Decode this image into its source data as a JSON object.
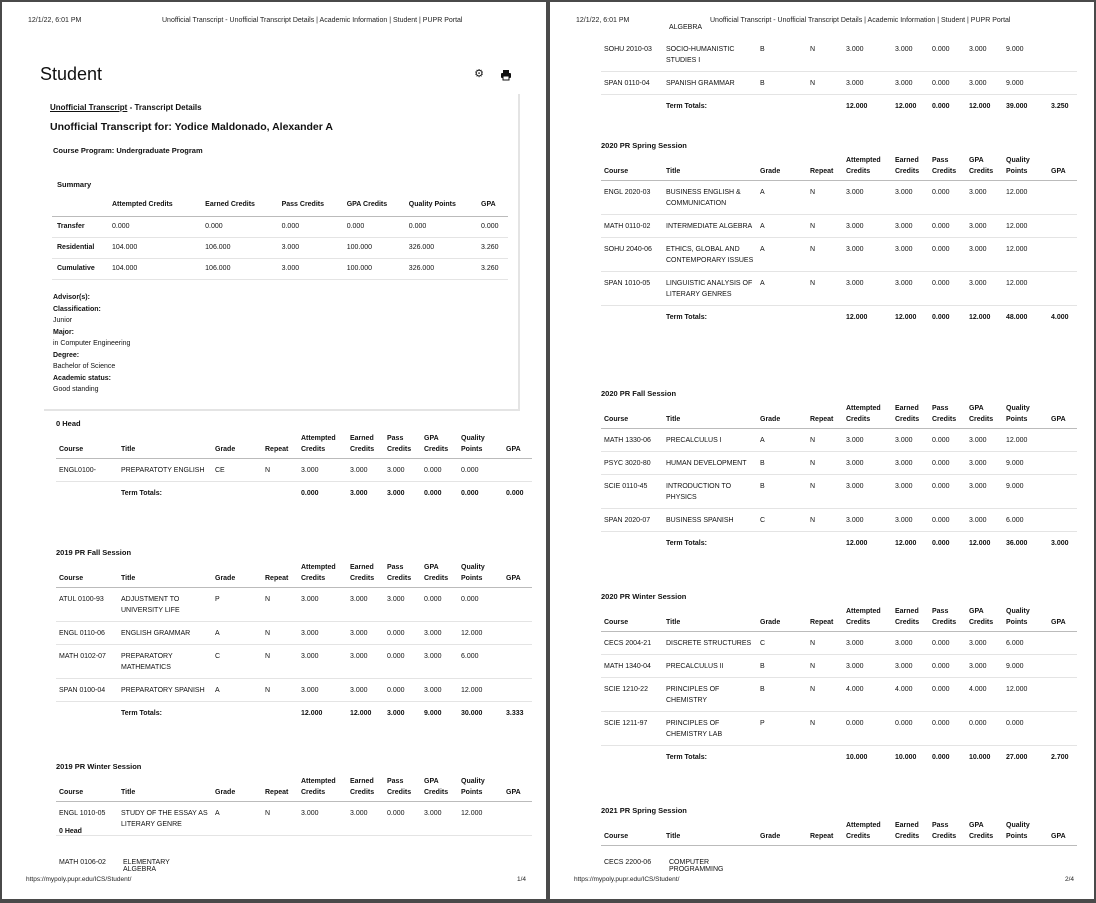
{
  "header": {
    "date": "12/1/22, 6:01 PM",
    "title": "Unofficial Transcript - Unofficial Transcript Details | Academic Information | Student | PUPR Portal"
  },
  "footer": {
    "url": "https://mypoly.pupr.edu/ICS/Student/",
    "page1": "1/4",
    "page2": "2/4"
  },
  "page1": {
    "heading": "Student",
    "breadcrumb_link": "Unofficial Transcript",
    "breadcrumb_rest": " - Transcript Details",
    "transcript_for": "Unofficial Transcript for: Yodice Maldonado, Alexander A",
    "course_program": "Course Program: Undergraduate Program",
    "summary_label": "Summary",
    "summary_headers": [
      "Attempted Credits",
      "Earned Credits",
      "Pass Credits",
      "GPA Credits",
      "Quality Points",
      "GPA"
    ],
    "summary_rows": [
      {
        "label": "Transfer",
        "vals": [
          "0.000",
          "0.000",
          "0.000",
          "0.000",
          "0.000",
          "0.000"
        ]
      },
      {
        "label": "Residential",
        "vals": [
          "104.000",
          "106.000",
          "3.000",
          "100.000",
          "326.000",
          "3.260"
        ]
      },
      {
        "label": "Cumulative",
        "vals": [
          "104.000",
          "106.000",
          "3.000",
          "100.000",
          "326.000",
          "3.260"
        ]
      }
    ],
    "advisor_label": "Advisor(s):",
    "classification_label": "Classification:",
    "classification": "Junior",
    "major_label": "Major:",
    "major": "in Computer Engineering",
    "degree_label": "Degree:",
    "degree": "Bachelor of Science",
    "status_label": "Academic status:",
    "status": "Good standing"
  },
  "col_headers": [
    "Course",
    "Title",
    "Grade",
    "Repeat",
    "Attempted Credits",
    "Earned Credits",
    "Pass Credits",
    "GPA Credits",
    "Quality Points",
    "GPA"
  ],
  "term_totals_label": "Term Totals:",
  "sections_p1": [
    {
      "name": "0 Head",
      "rows": [
        [
          "ENGL0100-",
          "PREPARATOTY ENGLISH",
          "CE",
          "N",
          "3.000",
          "3.000",
          "3.000",
          "0.000",
          "0.000",
          ""
        ]
      ],
      "totals": [
        "0.000",
        "3.000",
        "3.000",
        "0.000",
        "0.000",
        "0.000"
      ]
    },
    {
      "name": "2019 PR Fall Session",
      "rows": [
        [
          "ATUL 0100-93",
          "ADJUSTMENT TO UNIVERSITY LIFE",
          "P",
          "N",
          "3.000",
          "3.000",
          "3.000",
          "0.000",
          "0.000",
          ""
        ],
        [
          "ENGL 0110-06",
          "ENGLISH GRAMMAR",
          "A",
          "N",
          "3.000",
          "3.000",
          "0.000",
          "3.000",
          "12.000",
          ""
        ],
        [
          "MATH 0102-07",
          "PREPARATORY MATHEMATICS",
          "C",
          "N",
          "3.000",
          "3.000",
          "0.000",
          "3.000",
          "6.000",
          ""
        ],
        [
          "SPAN 0100-04",
          "PREPARATORY SPANISH",
          "A",
          "N",
          "3.000",
          "3.000",
          "0.000",
          "3.000",
          "12.000",
          ""
        ]
      ],
      "totals": [
        "12.000",
        "12.000",
        "3.000",
        "9.000",
        "30.000",
        "3.333"
      ]
    },
    {
      "name": "2019 PR Winter Session",
      "rows": [
        [
          "ENGL 1010-05",
          "STUDY OF THE ESSAY AS LITERARY GENRE",
          "A",
          "N",
          "3.000",
          "3.000",
          "0.000",
          "3.000",
          "12.000",
          ""
        ]
      ],
      "totals": null
    }
  ],
  "sections_p2": [
    {
      "name": "",
      "rows": [
        [
          "SOHU 2010-03",
          "SOCIO-HUMANISTIC STUDIES I",
          "B",
          "N",
          "3.000",
          "3.000",
          "0.000",
          "3.000",
          "9.000",
          ""
        ],
        [
          "SPAN 0110-04",
          "SPANISH GRAMMAR",
          "B",
          "N",
          "3.000",
          "3.000",
          "0.000",
          "3.000",
          "9.000",
          ""
        ]
      ],
      "totals": [
        "12.000",
        "12.000",
        "0.000",
        "12.000",
        "39.000",
        "3.250"
      ]
    },
    {
      "name": "2020 PR Spring Session",
      "rows": [
        [
          "ENGL 2020-03",
          "BUSINESS ENGLISH & COMMUNICATION",
          "A",
          "N",
          "3.000",
          "3.000",
          "0.000",
          "3.000",
          "12.000",
          ""
        ],
        [
          "MATH 0110-02",
          "INTERMEDIATE ALGEBRA",
          "A",
          "N",
          "3.000",
          "3.000",
          "0.000",
          "3.000",
          "12.000",
          ""
        ],
        [
          "SOHU 2040-06",
          "ETHICS, GLOBAL AND CONTEMPORARY ISSUES",
          "A",
          "N",
          "3.000",
          "3.000",
          "0.000",
          "3.000",
          "12.000",
          ""
        ],
        [
          "SPAN 1010-05",
          "LINGUISTIC ANALYSIS OF LITERARY GENRES",
          "A",
          "N",
          "3.000",
          "3.000",
          "0.000",
          "3.000",
          "12.000",
          ""
        ]
      ],
      "totals": [
        "12.000",
        "12.000",
        "0.000",
        "12.000",
        "48.000",
        "4.000"
      ]
    },
    {
      "name": "2020 PR Fall Session",
      "rows": [
        [
          "MATH 1330-06",
          "PRECALCULUS I",
          "A",
          "N",
          "3.000",
          "3.000",
          "0.000",
          "3.000",
          "12.000",
          ""
        ],
        [
          "PSYC 3020-80",
          "HUMAN DEVELOPMENT",
          "B",
          "N",
          "3.000",
          "3.000",
          "0.000",
          "3.000",
          "9.000",
          ""
        ],
        [
          "SCIE 0110-45",
          "INTRODUCTION TO PHYSICS",
          "B",
          "N",
          "3.000",
          "3.000",
          "0.000",
          "3.000",
          "9.000",
          ""
        ],
        [
          "SPAN 2020-07",
          "BUSINESS SPANISH",
          "C",
          "N",
          "3.000",
          "3.000",
          "0.000",
          "3.000",
          "6.000",
          ""
        ]
      ],
      "totals": [
        "12.000",
        "12.000",
        "0.000",
        "12.000",
        "36.000",
        "3.000"
      ]
    },
    {
      "name": "2020 PR Winter Session",
      "rows": [
        [
          "CECS 2004-21",
          "DISCRETE STRUCTURES",
          "C",
          "N",
          "3.000",
          "3.000",
          "0.000",
          "3.000",
          "6.000",
          ""
        ],
        [
          "MATH 1340-04",
          "PRECALCULUS II",
          "B",
          "N",
          "3.000",
          "3.000",
          "0.000",
          "3.000",
          "9.000",
          ""
        ],
        [
          "SCIE 1210-22",
          "PRINCIPLES OF CHEMISTRY",
          "B",
          "N",
          "4.000",
          "4.000",
          "0.000",
          "4.000",
          "12.000",
          ""
        ],
        [
          "SCIE 1211-97",
          "PRINCIPLES OF CHEMISTRY LAB",
          "P",
          "N",
          "0.000",
          "0.000",
          "0.000",
          "0.000",
          "0.000",
          ""
        ]
      ],
      "totals": [
        "10.000",
        "10.000",
        "0.000",
        "10.000",
        "27.000",
        "2.700"
      ]
    },
    {
      "name": "2021 PR Spring Session",
      "rows": [],
      "totals": null
    }
  ],
  "ghost": {
    "p1_head": "0 Head",
    "p1_course": "MATH 0106-02",
    "p1_title": "ELEMENTARY ALGEBRA",
    "p2_course": "CECS 2200-06",
    "p2_title": "COMPUTER PROGRAMMING",
    "p2_top_fragment": "ALGEBRA"
  }
}
